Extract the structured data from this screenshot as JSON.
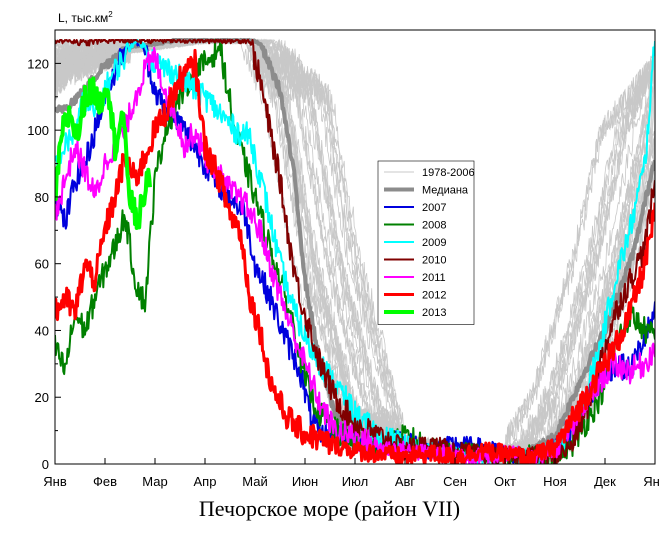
{
  "caption": "Печорское море (район VII)",
  "chart_data": {
    "type": "line",
    "title": "",
    "ylabel": "L, тыс.км",
    "ylabel_superscript": "2",
    "xlabel": "",
    "ylim": [
      0,
      130
    ],
    "yticks": [
      0,
      20,
      40,
      60,
      80,
      100,
      120
    ],
    "xlim": [
      0,
      12
    ],
    "month_labels": [
      "Янв",
      "Фев",
      "Мар",
      "Апр",
      "Май",
      "Июн",
      "Июл",
      "Авг",
      "Сен",
      "Окт",
      "Ноя",
      "Дек",
      "Янв"
    ],
    "grid": false,
    "legend_position": "center-right",
    "background_series": {
      "name": "1978-2006",
      "color": "#c8c8c8",
      "note_count": 29
    },
    "series": [
      {
        "name": "Медиана",
        "color": "#8c8c8c",
        "width": 4,
        "x": [
          0,
          0.3,
          0.6,
          0.9,
          1.2,
          1.5,
          2,
          2.5,
          3,
          3.5,
          3.9,
          4.1,
          4.5,
          4.8,
          5.0,
          5.3,
          5.6,
          6.0,
          6.5,
          7,
          7.5,
          8,
          8.5,
          9,
          9.5,
          10,
          10.3,
          10.6,
          11,
          11.3,
          11.6,
          12
        ],
        "y": [
          105,
          108,
          112,
          118,
          122,
          125,
          126,
          127,
          127,
          127,
          127,
          126,
          112,
          85,
          55,
          30,
          15,
          8,
          6,
          5,
          5,
          4,
          3,
          3,
          4,
          8,
          18,
          28,
          40,
          52,
          65,
          92
        ]
      },
      {
        "name": "2007",
        "color": "#0000dd",
        "width": 2,
        "x": [
          0,
          0.2,
          0.4,
          0.6,
          0.8,
          1.0,
          1.2,
          1.4,
          1.6,
          1.8,
          2.0,
          2.2,
          2.5,
          2.8,
          3.0,
          3.2,
          3.5,
          3.8,
          4.0,
          4.3,
          4.6,
          4.9,
          5.1,
          5.3,
          5.6,
          6.0,
          6.5,
          7,
          7.5,
          8,
          8.5,
          9,
          9.5,
          10,
          10.3,
          10.6,
          10.9,
          11.2,
          11.5,
          11.8,
          12
        ],
        "y": [
          80,
          72,
          85,
          90,
          100,
          110,
          118,
          125,
          127,
          124,
          112,
          106,
          102,
          95,
          90,
          85,
          80,
          75,
          60,
          50,
          38,
          28,
          15,
          8,
          10,
          6,
          5,
          7,
          4,
          6,
          5,
          3,
          2,
          5,
          10,
          18,
          25,
          30,
          28,
          38,
          45
        ]
      },
      {
        "name": "2008",
        "color": "#008000",
        "width": 2,
        "x": [
          0,
          0.2,
          0.4,
          0.6,
          0.8,
          1.0,
          1.2,
          1.4,
          1.6,
          1.8,
          2.0,
          2.2,
          2.5,
          2.8,
          3.0,
          3.3,
          3.6,
          3.9,
          4.2,
          4.5,
          4.8,
          5.0,
          5.3,
          5.6,
          6.0,
          6.5,
          7,
          7.5,
          8,
          8.5,
          9,
          9.5,
          10,
          10.3,
          10.6,
          10.9,
          11.2,
          11.5,
          11.8,
          12
        ],
        "y": [
          35,
          28,
          45,
          40,
          50,
          58,
          65,
          75,
          55,
          48,
          85,
          100,
          110,
          118,
          120,
          125,
          100,
          85,
          70,
          55,
          40,
          25,
          15,
          10,
          6,
          5,
          8,
          5,
          4,
          3,
          2,
          3,
          2,
          5,
          12,
          20,
          35,
          45,
          40,
          38
        ]
      },
      {
        "name": "2009",
        "color": "#00ffff",
        "width": 2,
        "x": [
          0,
          0.2,
          0.4,
          0.6,
          0.8,
          1.0,
          1.2,
          1.4,
          1.6,
          1.8,
          2.0,
          2.3,
          2.6,
          3.0,
          3.3,
          3.6,
          3.9,
          4.2,
          4.5,
          4.8,
          5.1,
          5.4,
          5.7,
          6.0,
          6.5,
          7,
          7.5,
          8,
          8.5,
          9,
          9.5,
          10,
          10.3,
          10.6,
          10.9,
          11.2,
          11.5,
          11.8,
          12
        ],
        "y": [
          90,
          95,
          100,
          110,
          105,
          112,
          118,
          122,
          127,
          125,
          120,
          118,
          115,
          110,
          105,
          100,
          98,
          80,
          60,
          45,
          35,
          28,
          22,
          15,
          8,
          6,
          4,
          3,
          2,
          3,
          2,
          4,
          10,
          20,
          35,
          55,
          70,
          90,
          127
        ]
      },
      {
        "name": "2010",
        "color": "#800000",
        "width": 2,
        "x": [
          0,
          0.3,
          0.6,
          0.9,
          1.2,
          1.5,
          2,
          2.5,
          3,
          3.5,
          3.9,
          4.1,
          4.3,
          4.5,
          4.7,
          4.9,
          5.1,
          5.3,
          5.6,
          6.0,
          6.5,
          7,
          7.5,
          8,
          8.5,
          9,
          9.5,
          10,
          10.3,
          10.6,
          10.9,
          11.2,
          11.5,
          11.8,
          12
        ],
        "y": [
          127,
          127,
          126,
          127,
          127,
          127,
          127,
          127,
          127,
          127,
          127,
          115,
          100,
          85,
          65,
          50,
          40,
          30,
          20,
          12,
          8,
          5,
          6,
          4,
          3,
          2,
          3,
          2,
          5,
          15,
          30,
          45,
          55,
          65,
          85
        ]
      },
      {
        "name": "2011",
        "color": "#ff00ff",
        "width": 2,
        "x": [
          0,
          0.2,
          0.4,
          0.6,
          0.8,
          1.0,
          1.2,
          1.4,
          1.6,
          1.8,
          2.0,
          2.2,
          2.4,
          2.6,
          2.8,
          3.0,
          3.2,
          3.5,
          3.8,
          4.1,
          4.4,
          4.7,
          5.0,
          5.3,
          5.6,
          6.0,
          6.5,
          7,
          7.5,
          8,
          8.5,
          9,
          9.5,
          10,
          10.3,
          10.6,
          10.9,
          11.2,
          11.5,
          11.8,
          12
        ],
        "y": [
          75,
          85,
          95,
          88,
          80,
          90,
          96,
          100,
          110,
          118,
          122,
          112,
          105,
          95,
          100,
          92,
          88,
          82,
          78,
          70,
          55,
          42,
          30,
          18,
          10,
          8,
          5,
          4,
          3,
          3,
          2,
          3,
          2,
          4,
          10,
          18,
          25,
          30,
          28,
          30,
          35
        ]
      },
      {
        "name": "2012",
        "color": "#ff0000",
        "width": 3,
        "x": [
          0,
          0.2,
          0.4,
          0.6,
          0.8,
          1.0,
          1.2,
          1.4,
          1.6,
          1.8,
          2.0,
          2.2,
          2.5,
          2.8,
          3.0,
          3.3,
          3.5,
          3.7,
          3.9,
          4.1,
          4.3,
          4.6,
          4.9,
          5.2,
          5.5,
          5.8,
          6.0,
          6.5,
          7,
          7.5,
          8,
          8.5,
          9,
          9.5,
          10,
          10.3,
          10.6,
          10.9,
          11.2,
          11.5,
          11.8,
          12
        ],
        "y": [
          45,
          50,
          45,
          60,
          55,
          70,
          80,
          92,
          85,
          92,
          100,
          105,
          115,
          120,
          95,
          85,
          75,
          70,
          50,
          40,
          25,
          15,
          10,
          8,
          6,
          5,
          4,
          3,
          2,
          3,
          2,
          4,
          3,
          2,
          5,
          12,
          20,
          28,
          35,
          45,
          60,
          75
        ]
      },
      {
        "name": "2013",
        "color": "#00ff00",
        "width": 4,
        "x": [
          0,
          0.15,
          0.3,
          0.45,
          0.6,
          0.75,
          0.9,
          1.05,
          1.2,
          1.35,
          1.5,
          1.65,
          1.8,
          1.9
        ],
        "y": [
          80,
          100,
          105,
          98,
          110,
          112,
          108,
          115,
          95,
          105,
          80,
          72,
          82,
          86
        ]
      }
    ]
  }
}
